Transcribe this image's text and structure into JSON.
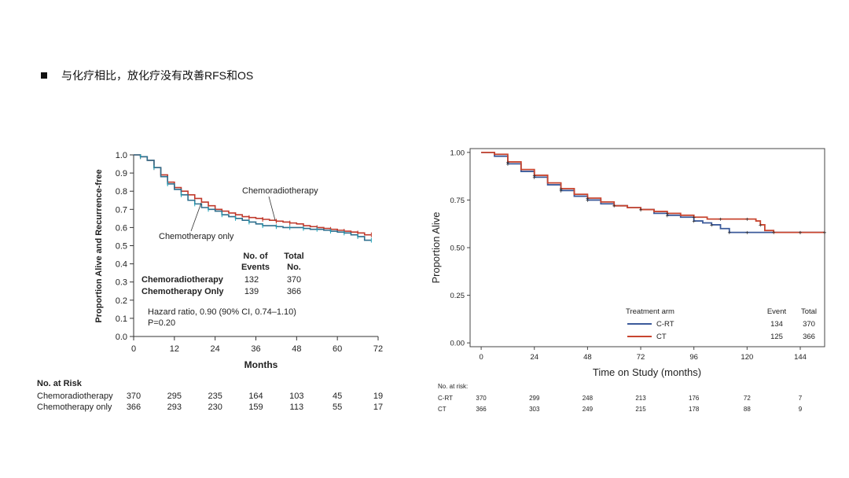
{
  "headline": "与化疗相比，放化疗没有改善RFS和OS",
  "colors": {
    "chemoradio": "#c0392b",
    "chemo_only": "#2e6f8e",
    "chemo_only_marks": "#1fa3b8",
    "crt": "#3b5a9a",
    "ct": "#c8452f"
  },
  "chart_data": [
    {
      "type": "line",
      "title": "",
      "xlabel": "Months",
      "ylabel": "Proportion Alive and Recurrence-free",
      "xlim": [
        0,
        72
      ],
      "ylim": [
        0,
        1.0
      ],
      "xticks": [
        0,
        12,
        24,
        36,
        48,
        60,
        72
      ],
      "yticks": [
        0.0,
        0.1,
        0.2,
        0.3,
        0.4,
        0.5,
        0.6,
        0.7,
        0.8,
        0.9,
        1.0
      ],
      "ytick_labels": [
        "0.0",
        "0.1",
        "0.2",
        "0.3",
        "0.4",
        "0.5",
        "0.6",
        "0.7",
        "0.8",
        "0.9",
        "1.0"
      ],
      "annotations": {
        "chemoradio_label": "Chemoradiotherapy",
        "chemo_label": "Chemotherapy only"
      },
      "series": [
        {
          "name": "Chemoradiotherapy",
          "x": [
            0,
            2,
            4,
            6,
            8,
            10,
            12,
            14,
            16,
            18,
            20,
            22,
            24,
            26,
            28,
            30,
            32,
            34,
            36,
            38,
            40,
            42,
            44,
            46,
            48,
            50,
            52,
            54,
            56,
            58,
            60,
            62,
            64,
            66,
            68,
            70
          ],
          "y": [
            1.0,
            0.99,
            0.97,
            0.93,
            0.89,
            0.85,
            0.82,
            0.8,
            0.78,
            0.76,
            0.74,
            0.72,
            0.7,
            0.69,
            0.68,
            0.67,
            0.66,
            0.655,
            0.65,
            0.645,
            0.64,
            0.635,
            0.63,
            0.625,
            0.62,
            0.61,
            0.605,
            0.6,
            0.595,
            0.59,
            0.585,
            0.58,
            0.575,
            0.57,
            0.56,
            0.56
          ]
        },
        {
          "name": "Chemotherapy only",
          "x": [
            0,
            2,
            4,
            6,
            8,
            10,
            12,
            14,
            16,
            18,
            20,
            22,
            24,
            26,
            28,
            30,
            32,
            34,
            36,
            38,
            40,
            42,
            44,
            46,
            48,
            50,
            52,
            54,
            56,
            58,
            60,
            62,
            64,
            66,
            68,
            70
          ],
          "y": [
            1.0,
            0.99,
            0.97,
            0.93,
            0.88,
            0.84,
            0.81,
            0.78,
            0.75,
            0.73,
            0.71,
            0.7,
            0.69,
            0.67,
            0.66,
            0.65,
            0.64,
            0.63,
            0.62,
            0.61,
            0.61,
            0.605,
            0.6,
            0.6,
            0.6,
            0.595,
            0.59,
            0.59,
            0.585,
            0.58,
            0.575,
            0.57,
            0.56,
            0.55,
            0.53,
            0.53
          ]
        }
      ],
      "table": {
        "col1_header_1": "No. of",
        "col1_header_2": "Events",
        "col2_header_1": "Total",
        "col2_header_2": "No.",
        "rows": [
          {
            "label": "Chemoradiotherapy",
            "events": "132",
            "total": "370"
          },
          {
            "label": "Chemotherapy Only",
            "events": "139",
            "total": "366"
          }
        ],
        "hazard": "Hazard ratio, 0.90 (90% CI, 0.74–1.10)",
        "pvalue": "P=0.20"
      },
      "at_risk": {
        "title": "No. at Risk",
        "rows": [
          {
            "label": "Chemoradiotherapy",
            "values": [
              "370",
              "295",
              "235",
              "164",
              "103",
              "45",
              "19"
            ]
          },
          {
            "label": "Chemotherapy only",
            "values": [
              "366",
              "293",
              "230",
              "159",
              "113",
              "55",
              "17"
            ]
          }
        ]
      }
    },
    {
      "type": "line",
      "title": "",
      "xlabel": "Time on Study (months)",
      "ylabel": "Proportion Alive",
      "xlim": [
        -5,
        155
      ],
      "ylim": [
        -0.02,
        1.02
      ],
      "xticks": [
        0,
        24,
        48,
        72,
        96,
        120,
        144
      ],
      "yticks": [
        0.0,
        0.25,
        0.5,
        0.75,
        1.0
      ],
      "ytick_labels": [
        "0.00",
        "0.25",
        "0.50",
        "0.75",
        "1.00"
      ],
      "series": [
        {
          "name": "C-RT",
          "x": [
            0,
            6,
            12,
            18,
            24,
            30,
            36,
            42,
            48,
            54,
            60,
            66,
            72,
            78,
            84,
            90,
            96,
            100,
            104,
            108,
            112,
            116,
            120,
            126,
            132,
            138,
            144,
            150,
            155
          ],
          "y": [
            1.0,
            0.98,
            0.94,
            0.9,
            0.87,
            0.83,
            0.8,
            0.77,
            0.75,
            0.73,
            0.72,
            0.71,
            0.7,
            0.68,
            0.67,
            0.66,
            0.64,
            0.63,
            0.62,
            0.6,
            0.58,
            0.58,
            0.58,
            0.58,
            0.58,
            0.58,
            0.58,
            0.58,
            0.58
          ]
        },
        {
          "name": "CT",
          "x": [
            0,
            6,
            12,
            18,
            24,
            30,
            36,
            42,
            48,
            54,
            60,
            66,
            72,
            78,
            84,
            90,
            96,
            102,
            108,
            114,
            120,
            124,
            126,
            128,
            132,
            138,
            144,
            150,
            155
          ],
          "y": [
            1.0,
            0.99,
            0.95,
            0.91,
            0.88,
            0.84,
            0.81,
            0.78,
            0.76,
            0.74,
            0.72,
            0.71,
            0.7,
            0.69,
            0.68,
            0.67,
            0.66,
            0.65,
            0.65,
            0.65,
            0.65,
            0.64,
            0.62,
            0.59,
            0.58,
            0.58,
            0.58,
            0.58,
            0.58
          ]
        }
      ],
      "legend": {
        "title": "Treatment arm",
        "event_header": "Event",
        "total_header": "Total",
        "rows": [
          {
            "label": "C-RT",
            "event": "134",
            "total": "370"
          },
          {
            "label": "CT",
            "event": "125",
            "total": "366"
          }
        ]
      },
      "at_risk": {
        "title": "No. at risk:",
        "rows": [
          {
            "label": "C-RT",
            "values": [
              "370",
              "299",
              "248",
              "213",
              "176",
              "72",
              "7"
            ]
          },
          {
            "label": "CT",
            "values": [
              "366",
              "303",
              "249",
              "215",
              "178",
              "88",
              "9"
            ]
          }
        ]
      }
    }
  ]
}
